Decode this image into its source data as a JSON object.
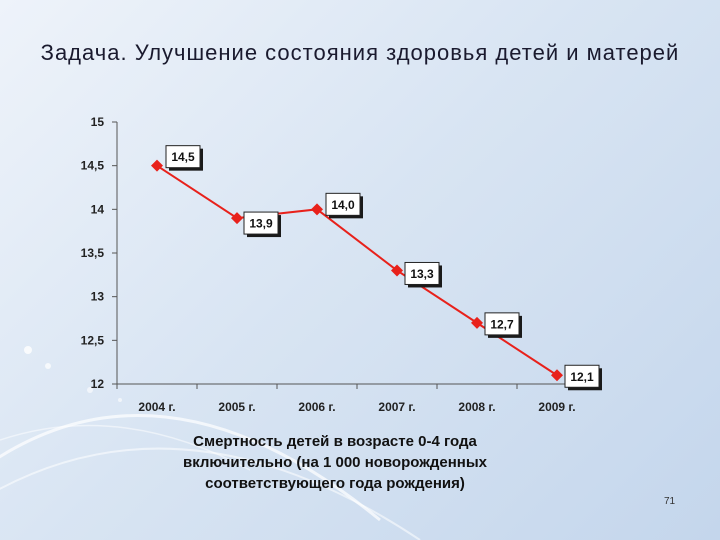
{
  "slide": {
    "title": "Задача. Улучшение состояния здоровья детей и матерей",
    "caption": "Смертность детей в возрасте 0-4 года включительно (на 1 000 новорожденных соответствующего года рождения)",
    "number": "71"
  },
  "chart_data": {
    "type": "line",
    "categories": [
      "2004 г.",
      "2005 г.",
      "2006 г.",
      "2007 г.",
      "2008 г.",
      "2009 г."
    ],
    "series": [
      {
        "values": [
          14.5,
          13.9,
          14.0,
          13.3,
          12.7,
          12.1
        ],
        "labels": [
          "14,5",
          "13,9",
          "14,0",
          "13,3",
          "12,7",
          "12,1"
        ],
        "color": "#e8211b"
      }
    ],
    "yticks": [
      "15",
      "14,5",
      "14",
      "13,5",
      "13",
      "12,5",
      "12"
    ],
    "ylim": [
      12,
      15
    ],
    "grid": false,
    "xlabel": "Смертность детей в возрасте 0-4 года включительно (на 1 000 новорожденных соответствующего года рождения)"
  }
}
